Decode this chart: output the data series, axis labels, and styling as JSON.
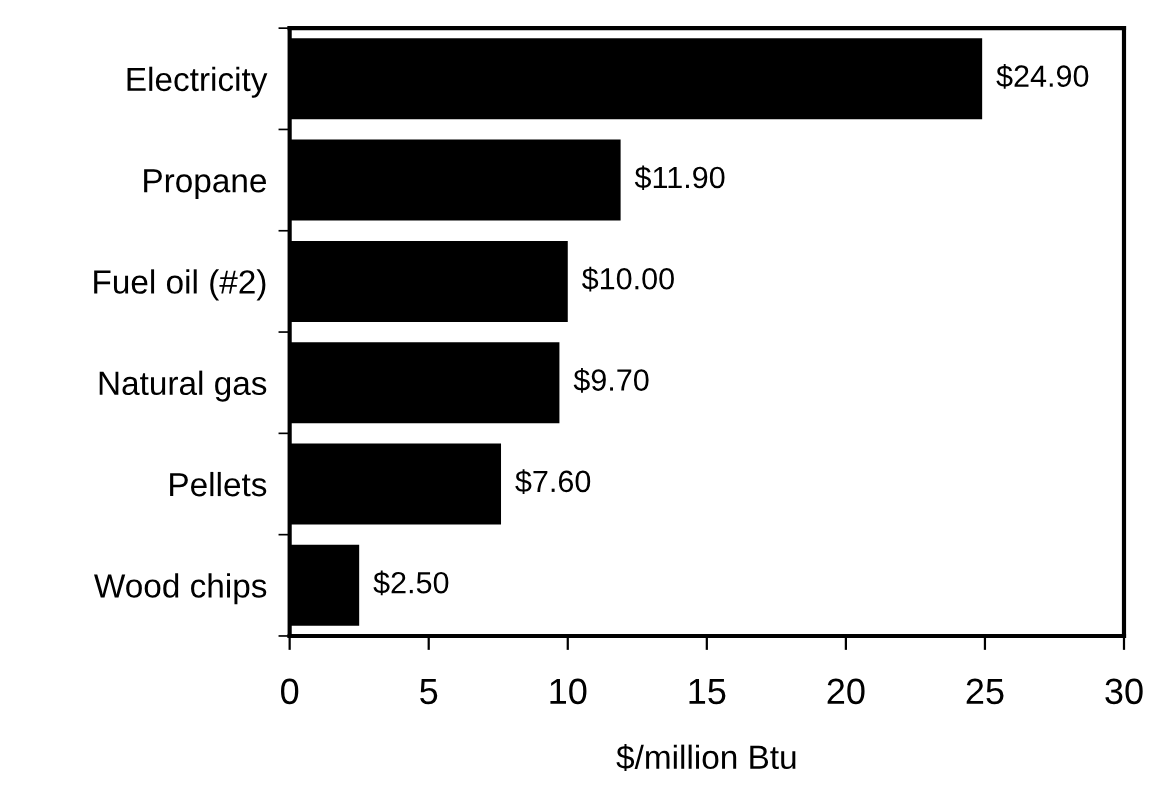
{
  "chart_data": {
    "type": "bar",
    "orientation": "horizontal",
    "xlabel": "$/million Btu",
    "categories": [
      "Electricity",
      "Propane",
      "Fuel oil (#2)",
      "Natural gas",
      "Pellets",
      "Wood chips"
    ],
    "values": [
      24.9,
      11.9,
      10.0,
      9.7,
      7.6,
      2.5
    ],
    "value_labels": [
      "$24.90",
      "$11.90",
      "$10.00",
      "$9.70",
      "$7.60",
      "$2.50"
    ],
    "color": "#000000",
    "xlim": [
      0,
      30
    ],
    "xticks": [
      0,
      5,
      10,
      15,
      20,
      25,
      30
    ],
    "grid": false
  }
}
